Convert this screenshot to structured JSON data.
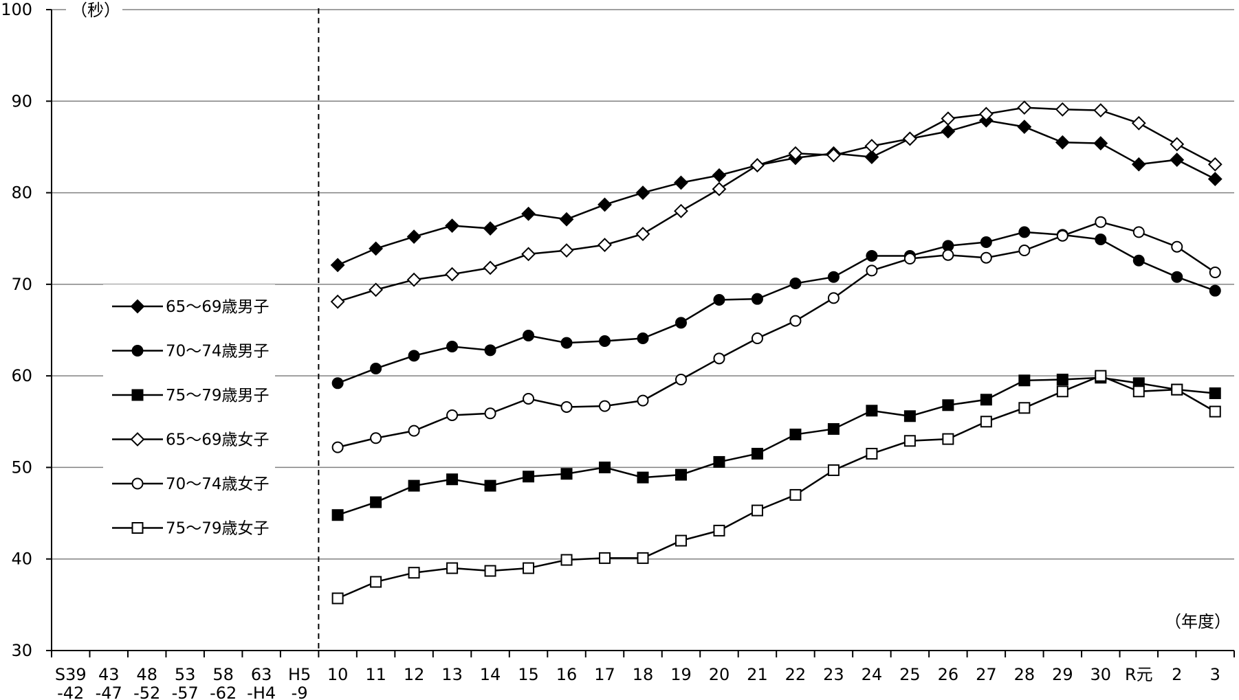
{
  "chart_data": {
    "type": "line",
    "y_unit": "（秒）",
    "x_unit": "（年度）",
    "ylim": [
      30,
      100
    ],
    "y_ticks": [
      30,
      40,
      50,
      60,
      70,
      80,
      90,
      100
    ],
    "grid": "horizontal",
    "legend_position": "left",
    "x_tick_labels": [
      [
        "S39",
        "-42"
      ],
      [
        "43",
        "-47"
      ],
      [
        "48",
        "-52"
      ],
      [
        "53",
        "-57"
      ],
      [
        "58",
        "-62"
      ],
      [
        "63",
        "-H4"
      ],
      [
        "H5",
        "-9"
      ],
      [
        "10"
      ],
      [
        "11"
      ],
      [
        "12"
      ],
      [
        "13"
      ],
      [
        "14"
      ],
      [
        "15"
      ],
      [
        "16"
      ],
      [
        "17"
      ],
      [
        "18"
      ],
      [
        "19"
      ],
      [
        "20"
      ],
      [
        "21"
      ],
      [
        "22"
      ],
      [
        "23"
      ],
      [
        "24"
      ],
      [
        "25"
      ],
      [
        "26"
      ],
      [
        "27"
      ],
      [
        "28"
      ],
      [
        "29"
      ],
      [
        "30"
      ],
      [
        "R元"
      ],
      [
        "2"
      ],
      [
        "3"
      ]
    ],
    "categories": [
      "10",
      "11",
      "12",
      "13",
      "14",
      "15",
      "16",
      "17",
      "18",
      "19",
      "20",
      "21",
      "22",
      "23",
      "24",
      "25",
      "26",
      "27",
      "28",
      "29",
      "30",
      "R元",
      "2",
      "3"
    ],
    "series": [
      {
        "name": "65～69歳男子",
        "marker": "diamond",
        "filled": true,
        "values": [
          72.1,
          73.9,
          75.2,
          76.4,
          76.1,
          77.7,
          77.1,
          78.7,
          80.0,
          81.1,
          81.9,
          83.0,
          83.8,
          84.3,
          83.9,
          85.9,
          86.7,
          87.9,
          87.2,
          85.5,
          85.4,
          83.1,
          83.6,
          81.5
        ]
      },
      {
        "name": "70～74歳男子",
        "marker": "circle",
        "filled": true,
        "values": [
          59.2,
          60.8,
          62.2,
          63.2,
          62.8,
          64.4,
          63.6,
          63.8,
          64.1,
          65.8,
          68.3,
          68.4,
          70.1,
          70.8,
          73.1,
          73.1,
          74.2,
          74.6,
          75.7,
          75.4,
          74.9,
          72.6,
          70.8,
          69.3
        ]
      },
      {
        "name": "75～79歳男子",
        "marker": "square",
        "filled": true,
        "values": [
          44.8,
          46.2,
          48.0,
          48.7,
          48.0,
          49.0,
          49.3,
          50.0,
          48.9,
          49.2,
          50.6,
          51.5,
          53.6,
          54.2,
          56.2,
          55.6,
          56.8,
          57.4,
          59.5,
          59.6,
          59.8,
          59.2,
          58.5,
          58.1
        ]
      },
      {
        "name": "65～69歳女子",
        "marker": "diamond",
        "filled": false,
        "values": [
          68.1,
          69.4,
          70.5,
          71.1,
          71.8,
          73.3,
          73.7,
          74.3,
          75.5,
          78.0,
          80.4,
          83.0,
          84.3,
          84.1,
          85.1,
          85.9,
          88.1,
          88.6,
          89.3,
          89.1,
          89.0,
          87.6,
          85.3,
          83.1
        ]
      },
      {
        "name": "70～74歳女子",
        "marker": "circle",
        "filled": false,
        "values": [
          52.2,
          53.2,
          54.0,
          55.7,
          55.9,
          57.5,
          56.6,
          56.7,
          57.3,
          59.6,
          61.9,
          64.1,
          66.0,
          68.5,
          71.5,
          72.8,
          73.2,
          72.9,
          73.7,
          75.3,
          76.8,
          75.7,
          74.1,
          71.3
        ]
      },
      {
        "name": "75～79歳女子",
        "marker": "square",
        "filled": false,
        "values": [
          35.7,
          37.5,
          38.5,
          39.0,
          38.7,
          39.0,
          39.9,
          40.1,
          40.1,
          42.0,
          43.1,
          45.3,
          47.0,
          49.7,
          51.5,
          52.9,
          53.1,
          55.0,
          56.5,
          58.3,
          60.0,
          58.3,
          58.5,
          56.1
        ]
      }
    ]
  }
}
